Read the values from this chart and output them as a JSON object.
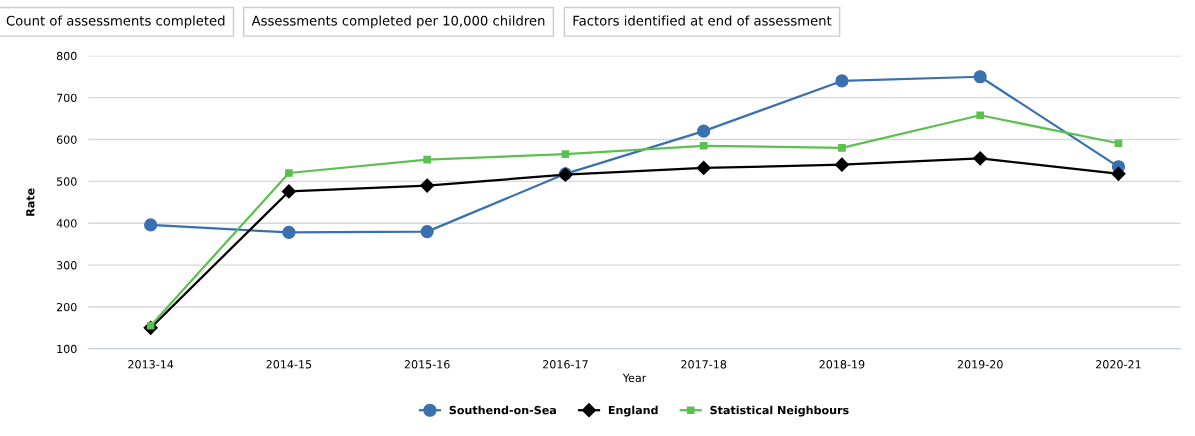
{
  "chart_data": {
    "type": "line",
    "xlabel": "Year",
    "ylabel": "Rate",
    "annotations": [
      "Count of assessments completed",
      "Assessments completed per 10,000 children",
      "Factors identified at end of assessment"
    ],
    "categories": [
      "2013-14",
      "2014-15",
      "2015-16",
      "2016-17",
      "2017-18",
      "2018-19",
      "2019-20",
      "2020-21"
    ],
    "series": [
      {
        "name": "Southend-on-Sea",
        "color": "#3a70b0",
        "marker": "circle",
        "values": [
          396,
          378,
          380,
          518,
          620,
          740,
          750,
          535
        ]
      },
      {
        "name": "England",
        "color": "#000000",
        "marker": "diamond",
        "values": [
          150,
          476,
          490,
          516,
          532,
          540,
          555,
          518
        ]
      },
      {
        "name": "Statistical Neighbours",
        "color": "#5cc04f",
        "marker": "square",
        "values": [
          155,
          520,
          552,
          565,
          585,
          580,
          658,
          591
        ]
      }
    ],
    "ylim": [
      100,
      800
    ],
    "yticks": [
      100,
      200,
      300,
      400,
      500,
      600,
      700,
      800
    ],
    "grid": "y",
    "legend": "bottom"
  }
}
